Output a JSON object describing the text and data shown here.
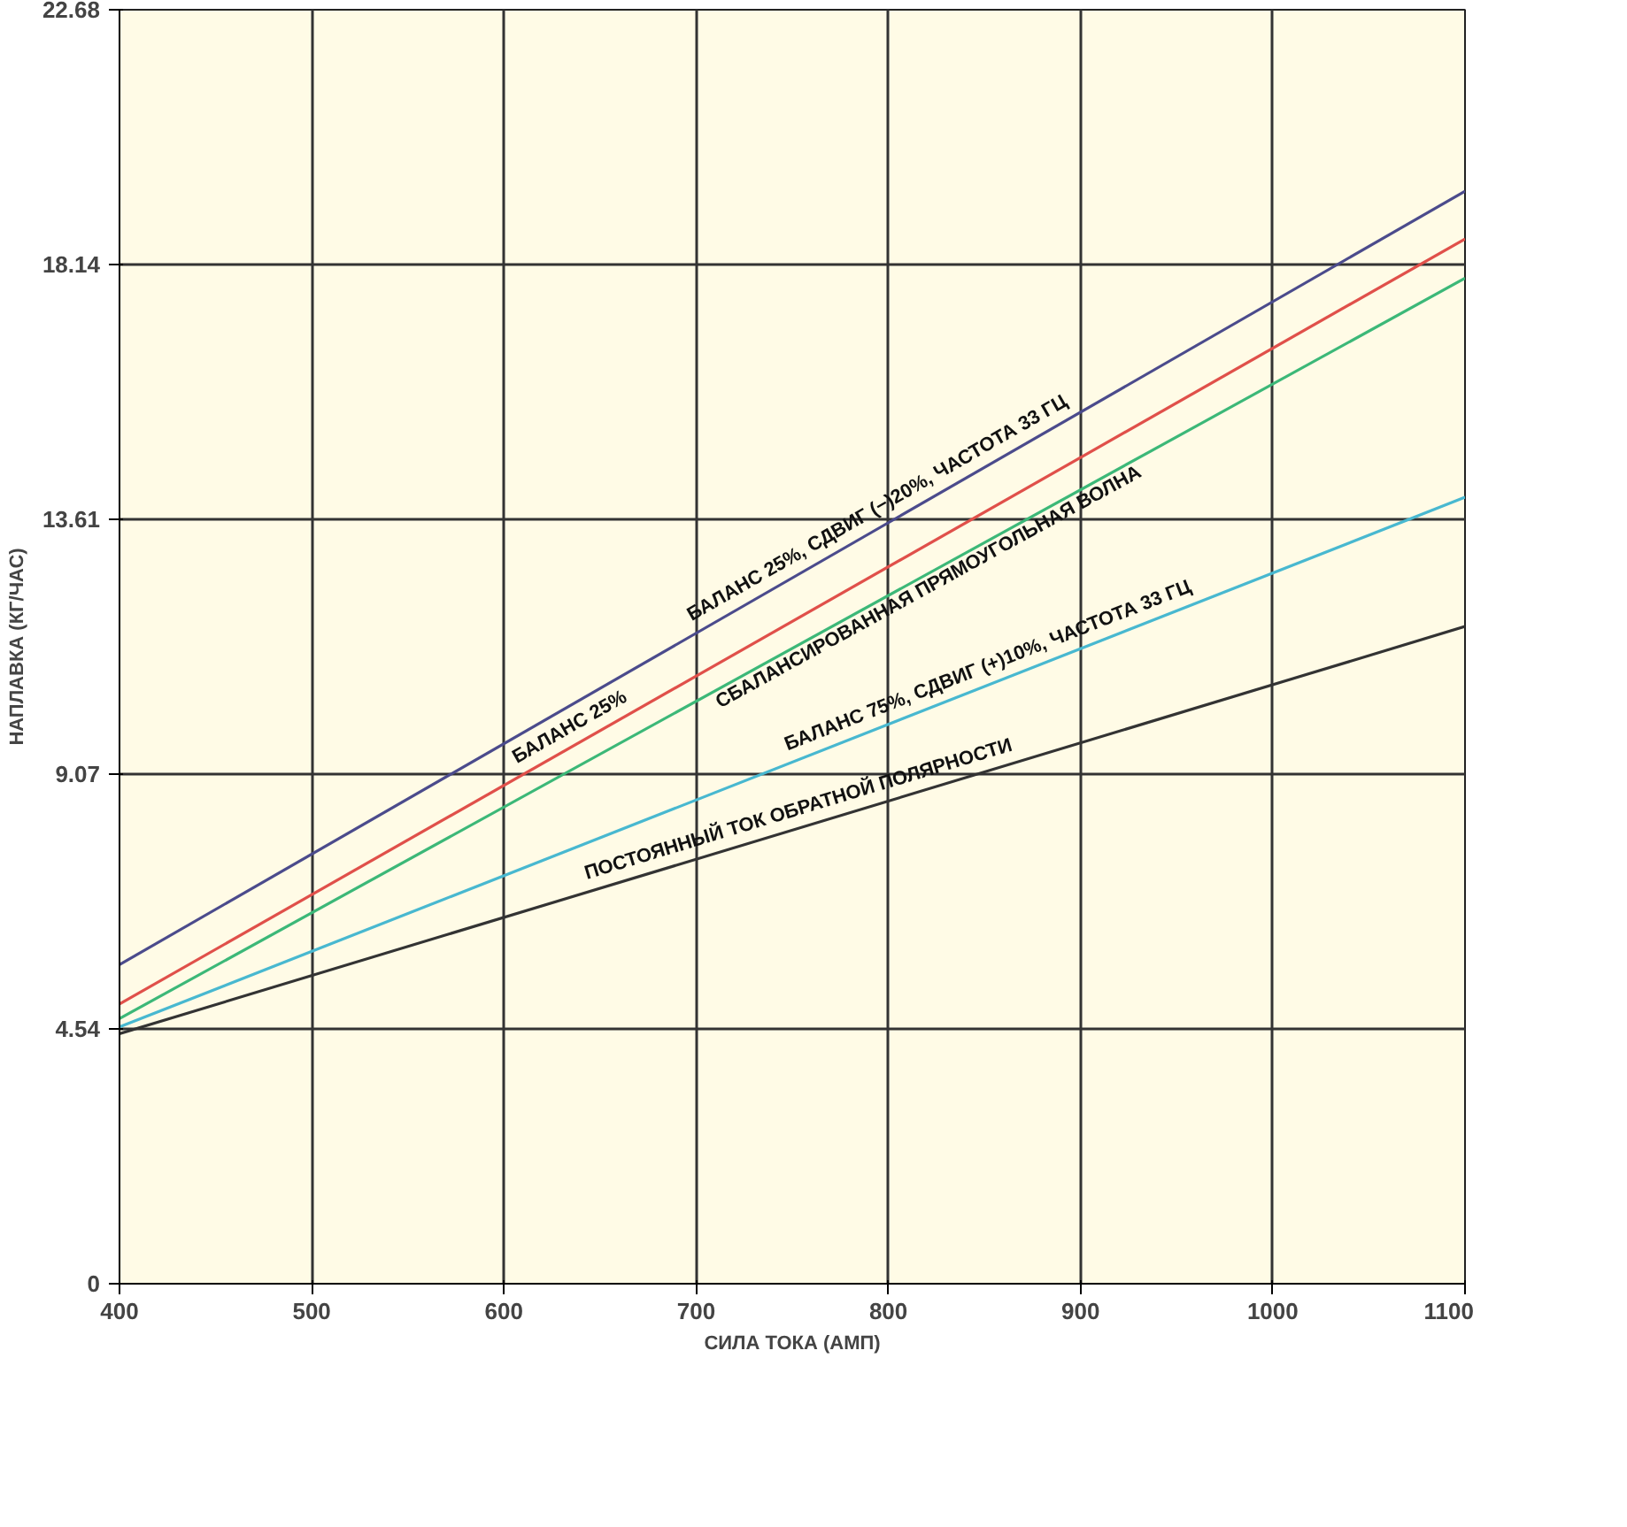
{
  "chart_data": {
    "type": "line",
    "xlabel": "СИЛА ТОКА (АМП)",
    "ylabel": "НАПЛАВКА (КГ/ЧАС)",
    "x": [
      400,
      1100
    ],
    "series": [
      {
        "name": "БАЛАНС 25%, СДВИГ (−)20%, ЧАСТОТА 33 ГЦ",
        "color": "#4b4b8c",
        "values": [
          5.68,
          19.45
        ]
      },
      {
        "name": "БАЛАНС 25%",
        "color": "#e0504a",
        "values": [
          4.98,
          18.6
        ]
      },
      {
        "name": "СБАЛАНСИРОВАННАЯ ПРЯМОУГОЛЬНАЯ ВОЛНА",
        "color": "#3cb878",
        "values": [
          4.72,
          17.9
        ]
      },
      {
        "name": "БАЛАНС 75%, СДВИГ (+)10%, ЧАСТОТА 33 ГЦ",
        "color": "#48b8d0",
        "values": [
          4.57,
          14.0
        ]
      },
      {
        "name": "ПОСТОЯННЫЙ ТОК ОБРАТНОЙ ПОЛЯРНОСТИ",
        "color": "#333333",
        "values": [
          4.45,
          11.7
        ]
      }
    ],
    "xlim": [
      400,
      1100
    ],
    "ylim": [
      0,
      22.68
    ],
    "xticks": [
      400,
      500,
      600,
      700,
      800,
      900,
      1000,
      1100
    ],
    "yticks": [
      0,
      {
        "value": 4.54,
        "label": "4.54"
      },
      {
        "value": 9.07,
        "label": "9.07"
      },
      {
        "value": 13.61,
        "label": "13.61"
      },
      {
        "value": 18.14,
        "label": "18.14"
      },
      {
        "value": 22.68,
        "label": "22.68"
      }
    ],
    "grid": true,
    "marker": "none",
    "line_style": "solid"
  }
}
